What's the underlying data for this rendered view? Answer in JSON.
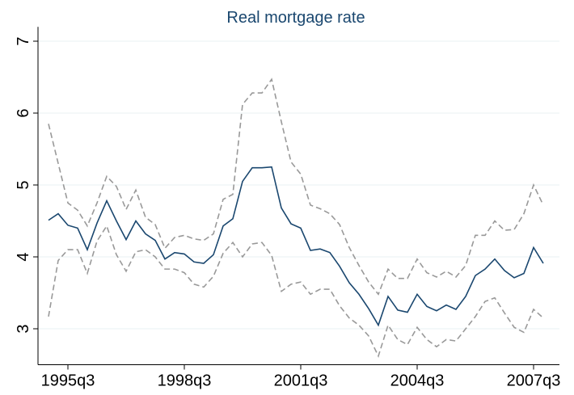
{
  "chart_data": {
    "type": "line",
    "title": "Real mortgage rate",
    "categories": [
      null,
      null,
      "1995q3",
      null,
      null,
      null,
      null,
      null,
      null,
      null,
      null,
      null,
      null,
      null,
      "1998q3",
      null,
      null,
      null,
      null,
      null,
      null,
      null,
      null,
      null,
      null,
      null,
      "2001q3",
      null,
      null,
      null,
      null,
      null,
      null,
      null,
      null,
      null,
      null,
      null,
      "2004q3",
      null,
      null,
      null,
      null,
      null,
      null,
      null,
      null,
      null,
      null,
      null,
      "2007q3",
      null
    ],
    "series": [
      {
        "color": "#999999",
        "dashed": true,
        "values": [
          5.85,
          5.3,
          4.75,
          4.65,
          4.43,
          4.75,
          5.12,
          4.98,
          4.66,
          4.93,
          4.55,
          4.45,
          4.12,
          4.27,
          4.3,
          4.25,
          4.23,
          4.32,
          4.8,
          4.87,
          6.12,
          6.28,
          6.28,
          6.47,
          5.88,
          5.32,
          5.15,
          4.72,
          4.67,
          4.6,
          4.45,
          4.13,
          3.88,
          3.65,
          3.48,
          3.83,
          3.7,
          3.7,
          3.97,
          3.78,
          3.72,
          3.8,
          3.72,
          3.88,
          4.3,
          4.3,
          4.5,
          4.37,
          4.38,
          4.6,
          5.0,
          4.72
        ]
      },
      {
        "color": "#1a476f",
        "dashed": false,
        "values": [
          4.51,
          4.6,
          4.44,
          4.4,
          4.1,
          4.47,
          4.78,
          4.5,
          4.24,
          4.5,
          4.32,
          4.23,
          3.97,
          4.06,
          4.04,
          3.93,
          3.91,
          4.03,
          4.43,
          4.53,
          5.05,
          5.24,
          5.24,
          5.25,
          4.68,
          4.46,
          4.4,
          4.09,
          4.11,
          4.06,
          3.87,
          3.64,
          3.48,
          3.28,
          3.05,
          3.45,
          3.26,
          3.23,
          3.48,
          3.31,
          3.25,
          3.33,
          3.27,
          3.45,
          3.74,
          3.83,
          3.97,
          3.81,
          3.71,
          3.77,
          4.13,
          3.91
        ]
      },
      {
        "color": "#999999",
        "dashed": true,
        "values": [
          3.17,
          3.95,
          4.1,
          4.1,
          3.77,
          4.22,
          4.43,
          4.03,
          3.8,
          4.07,
          4.1,
          4.0,
          3.83,
          3.83,
          3.78,
          3.62,
          3.58,
          3.73,
          4.05,
          4.2,
          4.0,
          4.18,
          4.2,
          4.02,
          3.52,
          3.62,
          3.65,
          3.48,
          3.55,
          3.55,
          3.32,
          3.15,
          3.05,
          2.9,
          2.62,
          3.05,
          2.85,
          2.78,
          3.02,
          2.85,
          2.75,
          2.85,
          2.83,
          3.0,
          3.17,
          3.38,
          3.43,
          3.22,
          3.02,
          2.95,
          3.27,
          3.15
        ]
      }
    ],
    "ylim": [
      2.5,
      7.2
    ],
    "yticks": [
      3,
      4,
      5,
      6,
      7
    ],
    "grid": true
  }
}
